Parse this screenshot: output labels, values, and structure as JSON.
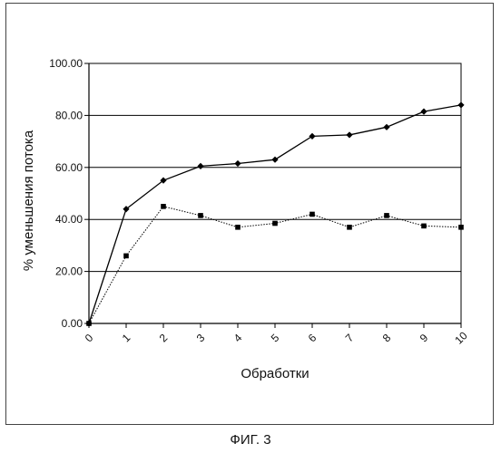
{
  "figure_caption": "ФИГ. 3",
  "chart_data": {
    "type": "line",
    "title": "",
    "xlabel": "Обработки",
    "ylabel": "% уменьшения потока",
    "x": [
      0,
      1,
      2,
      3,
      4,
      5,
      6,
      7,
      8,
      9,
      10
    ],
    "x_tick_labels": [
      "0",
      "1",
      "2",
      "3",
      "4",
      "5",
      "6",
      "7",
      "8",
      "9",
      "10"
    ],
    "ylim": [
      0,
      100
    ],
    "y_ticks": [
      0,
      20,
      40,
      60,
      80,
      100
    ],
    "y_tick_labels": [
      "0.00",
      "20.00",
      "40.00",
      "60.00",
      "80.00",
      "100.00"
    ],
    "grid": "horizontal",
    "legend": "none",
    "series": [
      {
        "marker": "diamond",
        "line": "solid",
        "color": "#000000",
        "values": [
          0,
          44,
          55,
          60.5,
          61.5,
          63,
          72,
          72.5,
          75.5,
          81.5,
          84
        ]
      },
      {
        "marker": "square",
        "line": "dotted",
        "color": "#000000",
        "values": [
          0,
          26,
          45,
          41.5,
          37,
          38.5,
          42,
          37,
          41.5,
          37.5,
          37
        ]
      }
    ]
  }
}
